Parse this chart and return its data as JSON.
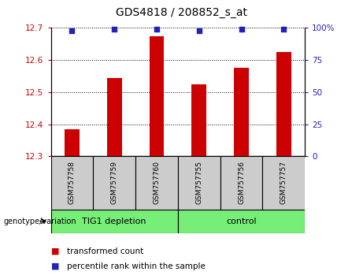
{
  "title": "GDS4818 / 208852_s_at",
  "samples": [
    "GSM757758",
    "GSM757759",
    "GSM757760",
    "GSM757755",
    "GSM757756",
    "GSM757757"
  ],
  "bar_values": [
    12.385,
    12.545,
    12.675,
    12.525,
    12.575,
    12.625
  ],
  "percentile_values": [
    98,
    99,
    99,
    98,
    99,
    99
  ],
  "bar_color": "#cc0000",
  "dot_color": "#2222bb",
  "ylim_left": [
    12.3,
    12.7
  ],
  "ylim_right": [
    0,
    100
  ],
  "yticks_left": [
    12.3,
    12.4,
    12.5,
    12.6,
    12.7
  ],
  "yticks_right": [
    0,
    25,
    50,
    75,
    100
  ],
  "groups": [
    {
      "label": "TIG1 depletion",
      "color": "#77ee77"
    },
    {
      "label": "control",
      "color": "#77ee77"
    }
  ],
  "group_label": "genotype/variation",
  "legend_bar_label": "transformed count",
  "legend_dot_label": "percentile rank within the sample",
  "tick_area_color": "#cccccc",
  "bar_width": 0.35
}
